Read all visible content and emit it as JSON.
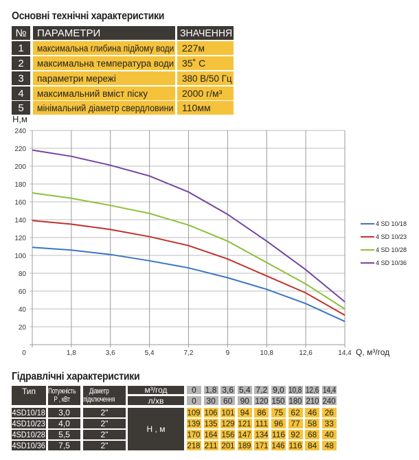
{
  "specs": {
    "title": "Основні технічні характеристики",
    "headers": [
      "№",
      "ПАРАМЕТРИ",
      "ЗНАЧЕННЯ"
    ],
    "rows": [
      {
        "n": "1",
        "param": "максимальна глибина підйому води",
        "value": "227м"
      },
      {
        "n": "2",
        "param": "максимальна температура води",
        "value": "35˚ C"
      },
      {
        "n": "3",
        "param": "параметри мережі",
        "value": "380 В/50 Гц"
      },
      {
        "n": "4",
        "param": "максимальний вміст піску",
        "value": "2000 г/м³"
      },
      {
        "n": "5",
        "param": "мінімальний діаметр свердловини",
        "value": "110мм"
      }
    ]
  },
  "chart_data": {
    "type": "line",
    "ylabel": "Н,м",
    "xlabel": "Q, м³/год",
    "x": [
      0,
      1.8,
      3.6,
      5.4,
      7.2,
      9,
      10.8,
      12.6,
      14.4
    ],
    "xticklabels": [
      "0",
      "1,8",
      "3,6",
      "5,4",
      "7,2",
      "9",
      "10,8",
      "12,6",
      "14,4"
    ],
    "yticks": [
      20,
      40,
      60,
      80,
      100,
      120,
      140,
      160,
      180,
      200,
      220,
      240
    ],
    "xlim": [
      0,
      14.4
    ],
    "ylim": [
      0,
      240
    ],
    "grid": true,
    "legend": "right",
    "series": [
      {
        "name": "4 SD 10/18",
        "color": "#3a75c4",
        "values": [
          109,
          106,
          101,
          94,
          86,
          75,
          62,
          46,
          26
        ]
      },
      {
        "name": "4 SD 10/23",
        "color": "#c0312b",
        "values": [
          139,
          135,
          129,
          121,
          111,
          96,
          77,
          58,
          33
        ]
      },
      {
        "name": "4 SD 10/28",
        "color": "#8fbf3a",
        "values": [
          170,
          164,
          156,
          147,
          134,
          116,
          92,
          68,
          40
        ]
      },
      {
        "name": "4 SD 10/36",
        "color": "#7345a0",
        "values": [
          218,
          211,
          201,
          189,
          171,
          146,
          116,
          84,
          48
        ]
      }
    ]
  },
  "hydro": {
    "title": "Гідравлічні характеристики",
    "h_type": "Тип",
    "h_power": "Потужність Р , кВт",
    "h_diam": "Діаметр підключення",
    "u_m3": "м³/год",
    "u_lmin": "л/хв",
    "u_h": "Н , м",
    "q_m3": [
      "0",
      "1,8",
      "3,6",
      "5,4",
      "7,2",
      "9,0",
      "10,8",
      "12,6",
      "14,4"
    ],
    "q_l": [
      "0",
      "30",
      "60",
      "90",
      "120",
      "150",
      "180",
      "210",
      "240"
    ],
    "rows": [
      {
        "type": "4SD10/18",
        "power": "3,0",
        "diam": "2\"",
        "h": [
          "109",
          "106",
          "101",
          "94",
          "86",
          "75",
          "62",
          "46",
          "26"
        ]
      },
      {
        "type": "4SD10/23",
        "power": "4,0",
        "diam": "2\"",
        "h": [
          "139",
          "135",
          "129",
          "121",
          "111",
          "96",
          "77",
          "58",
          "33"
        ]
      },
      {
        "type": "4SD10/28",
        "power": "5,5",
        "diam": "2\"",
        "h": [
          "170",
          "164",
          "156",
          "147",
          "134",
          "116",
          "92",
          "68",
          "40"
        ]
      },
      {
        "type": "4SD10/36",
        "power": "7,5",
        "diam": "2\"",
        "h": [
          "218",
          "211",
          "201",
          "189",
          "171",
          "146",
          "116",
          "84",
          "48"
        ]
      }
    ]
  }
}
